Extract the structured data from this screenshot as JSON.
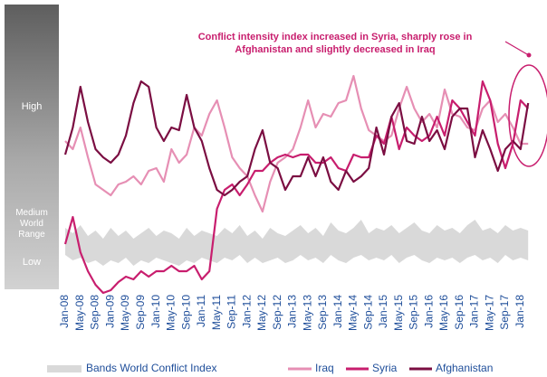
{
  "chart_data": {
    "type": "line",
    "side_labels": [
      "High",
      "Medium World Range",
      "Low"
    ],
    "annotation": "Conflict intensity index increased in Syria, sharply rose in Afghanistan and slightly decreased in Iraq",
    "categories": [
      "Jan-08",
      null,
      "May-08",
      null,
      "Sep-08",
      null,
      "Jan-09",
      null,
      "May-09",
      null,
      "Sep-09",
      null,
      "Jan-10",
      null,
      "May-10",
      null,
      "Sep-10",
      null,
      "Jan-11",
      null,
      "May-11",
      null,
      "Sep-11",
      null,
      "Jan-12",
      null,
      "May-12",
      null,
      "Sep-12",
      null,
      "Jan-13",
      null,
      "May-13",
      null,
      "Sep-13",
      null,
      "Jan-14",
      null,
      "May-14",
      null,
      "Sep-14",
      null,
      "Jan-15",
      null,
      "May-15",
      null,
      "Sep-15",
      null,
      "Jan-16",
      null,
      "May-16",
      null,
      "Sep-16",
      null,
      "Jan-17",
      null,
      "May-17",
      null,
      "Sep-17",
      null,
      "Jan-18",
      null
    ],
    "ylim": [
      0,
      100
    ],
    "band": {
      "name": "Bands World Conflict Index",
      "color": "#d9d9d9",
      "high": [
        26,
        24,
        27,
        23,
        25,
        22,
        26,
        23,
        25,
        22,
        24,
        26,
        23,
        25,
        24,
        22,
        26,
        23,
        25,
        24,
        23,
        26,
        24,
        27,
        23,
        25,
        22,
        26,
        24,
        23,
        25,
        27,
        24,
        26,
        23,
        28,
        25,
        24,
        26,
        29,
        24,
        26,
        25,
        27,
        24,
        26,
        28,
        25,
        24,
        27,
        25,
        26,
        24,
        27,
        29,
        25,
        26,
        24,
        27,
        25,
        26,
        25
      ],
      "low": [
        16,
        14,
        15,
        13,
        14,
        12,
        14,
        13,
        15,
        12,
        14,
        13,
        15,
        14,
        13,
        12,
        14,
        13,
        15,
        14,
        13,
        15,
        14,
        16,
        13,
        15,
        13,
        14,
        15,
        13,
        14,
        16,
        14,
        15,
        13,
        16,
        14,
        13,
        15,
        16,
        14,
        15,
        14,
        16,
        13,
        15,
        16,
        14,
        13,
        15,
        14,
        15,
        13,
        15,
        16,
        14,
        15,
        13,
        16,
        14,
        15,
        14
      ]
    },
    "series": [
      {
        "name": "Iraq",
        "color": "#e68fb4",
        "values": [
          58,
          55,
          63,
          52,
          42,
          40,
          38,
          42,
          43,
          45,
          42,
          47,
          48,
          43,
          55,
          50,
          53,
          63,
          60,
          68,
          73,
          63,
          52,
          48,
          45,
          38,
          32,
          43,
          50,
          52,
          55,
          63,
          73,
          63,
          68,
          67,
          72,
          73,
          82,
          70,
          62,
          60,
          58,
          60,
          70,
          78,
          70,
          65,
          68,
          63,
          77,
          68,
          67,
          63,
          62,
          70,
          73,
          65,
          68,
          63,
          57,
          57
        ]
      },
      {
        "name": "Syria",
        "color": "#c81e6e",
        "values": [
          20,
          30,
          17,
          10,
          5,
          2,
          3,
          6,
          8,
          7,
          10,
          8,
          10,
          10,
          12,
          10,
          10,
          12,
          7,
          10,
          33,
          40,
          42,
          38,
          42,
          47,
          47,
          50,
          52,
          53,
          52,
          53,
          53,
          50,
          50,
          52,
          48,
          47,
          53,
          52,
          52,
          60,
          57,
          67,
          55,
          63,
          60,
          58,
          60,
          67,
          60,
          73,
          70,
          65,
          60,
          80,
          73,
          57,
          48,
          57,
          73,
          70
        ]
      },
      {
        "name": "Afghanistan",
        "color": "#7b0e42",
        "values": [
          53,
          63,
          78,
          65,
          55,
          52,
          50,
          53,
          60,
          72,
          80,
          78,
          63,
          58,
          63,
          62,
          75,
          63,
          58,
          48,
          40,
          38,
          40,
          43,
          45,
          55,
          62,
          50,
          48,
          40,
          45,
          45,
          52,
          45,
          52,
          43,
          40,
          47,
          43,
          45,
          48,
          63,
          53,
          67,
          72,
          58,
          57,
          67,
          58,
          62,
          55,
          67,
          70,
          70,
          52,
          62,
          55,
          47,
          55,
          58,
          55,
          72
        ]
      }
    ]
  }
}
